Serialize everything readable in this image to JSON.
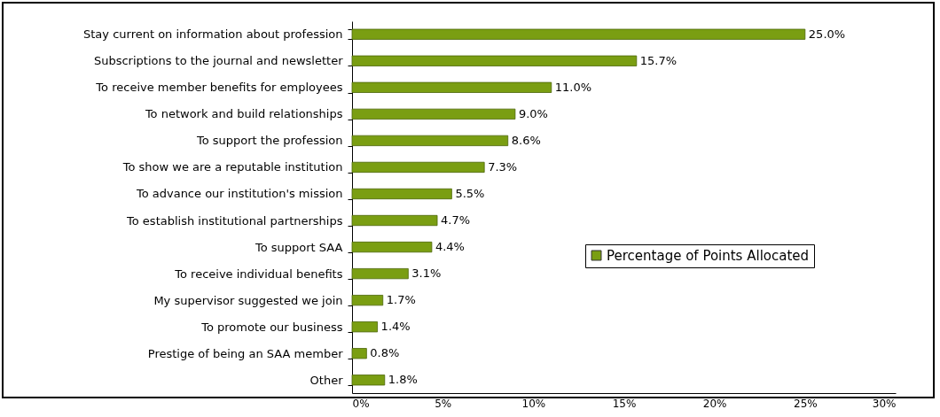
{
  "chart_data": {
    "type": "bar",
    "orientation": "horizontal",
    "categories": [
      "Stay current on information about profession",
      "Subscriptions to the journal and newsletter",
      "To receive member benefits for employees",
      "To network and build relationships",
      "To support the profession",
      "To show we are a reputable institution",
      "To advance our institution's mission",
      "To establish institutional partnerships",
      "To support SAA",
      "To receive individual benefits",
      "My supervisor suggested we join",
      "To promote our business",
      "Prestige of being an SAA member",
      "Other"
    ],
    "series": [
      {
        "name": "Percentage of Points Allocated",
        "color": "#7a9e12",
        "values": [
          25.0,
          15.7,
          11.0,
          9.0,
          8.6,
          7.3,
          5.5,
          4.7,
          4.4,
          3.1,
          1.7,
          1.4,
          0.8,
          1.8
        ],
        "value_labels": [
          "25.0%",
          "15.7%",
          "11.0%",
          "9.0%",
          "8.6%",
          "7.3%",
          "5.5%",
          "4.7%",
          "4.4%",
          "3.1%",
          "1.7%",
          "1.4%",
          "0.8%",
          "1.8%"
        ]
      }
    ],
    "xlim": [
      0,
      30
    ],
    "xticks": [
      {
        "value": 0,
        "label": "0%"
      },
      {
        "value": 5,
        "label": "5%"
      },
      {
        "value": 10,
        "label": "10%"
      },
      {
        "value": 15,
        "label": "15%"
      },
      {
        "value": 20,
        "label": "20%"
      },
      {
        "value": 25,
        "label": "25%"
      },
      {
        "value": 30,
        "label": "30%"
      }
    ],
    "grid": false,
    "legend": "right"
  }
}
